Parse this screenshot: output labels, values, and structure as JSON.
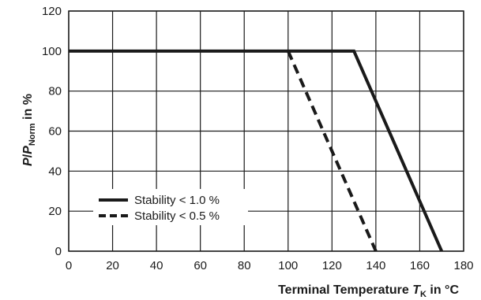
{
  "chart_data": {
    "type": "line",
    "title": "",
    "xlabel": {
      "prefix": "Terminal Temperature ",
      "symbol": "T",
      "subscript": "K",
      "suffix": " in °C"
    },
    "ylabel": {
      "symbol1": "P",
      "slash": "/",
      "symbol2": "P",
      "subscript": "Norm",
      "suffix": " in %"
    },
    "xlim": [
      0,
      180
    ],
    "ylim": [
      0,
      120
    ],
    "xticks": [
      "0",
      "20",
      "40",
      "60",
      "80",
      "100",
      "120",
      "140",
      "160",
      "180"
    ],
    "yticks": [
      "0",
      "20",
      "40",
      "60",
      "80",
      "100",
      "120"
    ],
    "grid": true,
    "legend_position": "bottom-left",
    "series": [
      {
        "name": "Stability < 1.0 %",
        "style": "solid",
        "x": [
          0,
          130,
          170
        ],
        "y": [
          100,
          100,
          0
        ]
      },
      {
        "name": "Stability < 0.5 %",
        "style": "dashed",
        "x": [
          100,
          140
        ],
        "y": [
          100,
          0
        ]
      }
    ]
  }
}
